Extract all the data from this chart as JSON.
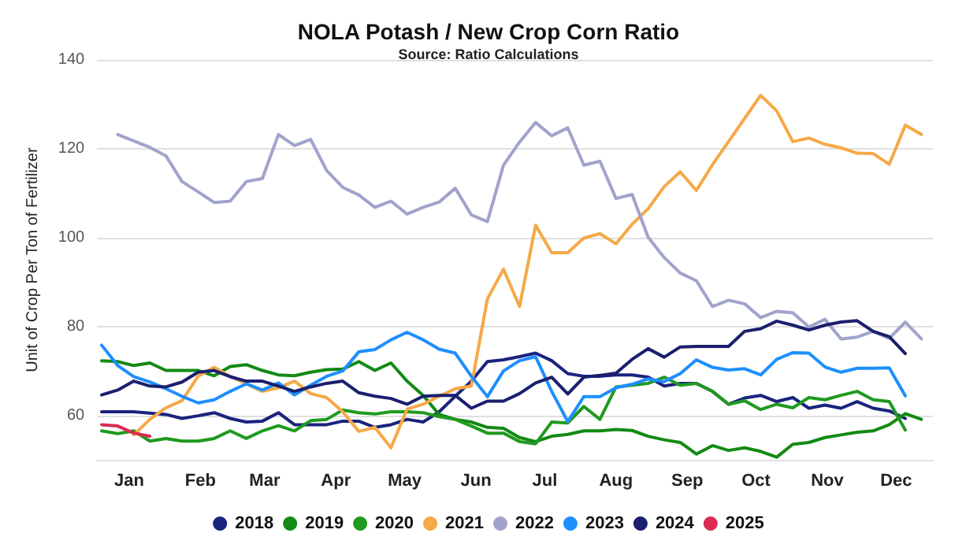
{
  "chart_data": {
    "type": "line",
    "title": "NOLA Potash / New Crop Corn Ratio",
    "subtitle": "Source: Ratio Calculations",
    "ylabel": "Unit of Crop Per Ton of Fertilizer",
    "x": [
      "--01-03",
      "--01-10",
      "--01-17",
      "--01-24",
      "--01-31",
      "--02-07",
      "--02-14",
      "--02-21",
      "--02-28",
      "--03-07",
      "--03-14",
      "--03-21",
      "--03-28",
      "--04-04",
      "--04-11",
      "--04-18",
      "--04-25",
      "--05-02",
      "--05-09",
      "--05-16",
      "--05-23",
      "--05-30",
      "--06-06",
      "--06-13",
      "--06-20",
      "--06-27",
      "--07-04",
      "--07-11",
      "--07-18",
      "--07-25",
      "--08-01",
      "--08-08",
      "--08-15",
      "--08-22",
      "--08-29",
      "--09-05",
      "--09-12",
      "--09-19",
      "--09-26",
      "--10-03",
      "--10-10",
      "--10-17",
      "--10-24",
      "--10-31",
      "--11-07",
      "--11-14",
      "--11-21",
      "--11-28",
      "--12-05",
      "--12-12",
      "--12-19",
      "--12-26"
    ],
    "xlim": [
      "--01-01",
      "--12-31"
    ],
    "xticks": [
      {
        "value": "--01-15",
        "label": "Jan"
      },
      {
        "value": "--02-15",
        "label": "Feb"
      },
      {
        "value": "--03-15",
        "label": "Mar"
      },
      {
        "value": "--04-15",
        "label": "Apr"
      },
      {
        "value": "--05-15",
        "label": "May"
      },
      {
        "value": "--06-15",
        "label": "Jun"
      },
      {
        "value": "--07-15",
        "label": "Jul"
      },
      {
        "value": "--08-15",
        "label": "Aug"
      },
      {
        "value": "--09-15",
        "label": "Sep"
      },
      {
        "value": "--10-15",
        "label": "Oct"
      },
      {
        "value": "--11-15",
        "label": "Nov"
      },
      {
        "value": "--12-15",
        "label": "Dec"
      }
    ],
    "ylim": [
      50,
      140
    ],
    "yticks": [
      60,
      80,
      100,
      120,
      140
    ],
    "grid": "y",
    "legend": "bottom",
    "marker": "none",
    "line_style": "solid",
    "series": [
      {
        "name": "2018",
        "color": "#1a237e",
        "x": [
          "--01-03",
          "--01-17",
          "--01-31",
          "--02-07",
          "--02-14",
          "--02-21",
          "--02-28",
          "--03-07",
          "--03-14",
          "--03-21",
          "--03-28",
          "--04-04",
          "--04-11",
          "--04-18",
          "--04-25",
          "--05-02",
          "--05-09",
          "--05-16",
          "--05-23",
          "--05-30",
          "--06-06",
          "--06-13",
          "--06-20",
          "--06-27",
          "--07-04",
          "--07-11",
          "--07-18",
          "--07-25",
          "--08-01",
          "--08-08",
          "--08-15",
          "--08-22",
          "--08-29",
          "--09-05",
          "--09-12",
          "--09-19",
          "--09-26",
          "--10-03",
          "--10-10",
          "--10-17",
          "--10-24",
          "--10-31",
          "--11-07",
          "--11-14",
          "--11-21",
          "--11-28",
          "--12-05",
          "--12-12",
          "--12-19"
        ],
        "values": [
          60.8,
          60.8,
          60.2,
          59.3,
          59.9,
          60.6,
          59.3,
          58.5,
          58.7,
          60.6,
          57.9,
          57.9,
          57.9,
          58.7,
          58.7,
          57.3,
          57.9,
          59.1,
          58.5,
          60.8,
          64.3,
          67.7,
          72.1,
          72.5,
          73.2,
          74,
          72.3,
          69.4,
          68.8,
          68.8,
          69.1,
          69.1,
          68.6,
          66.6,
          67.2,
          67.2,
          65.4,
          62.5,
          63.9,
          64.5,
          63.1,
          64,
          61.6,
          62.3,
          61.6,
          63.1,
          61.6,
          61,
          59.3
        ]
      },
      {
        "name": "2019",
        "color": "#138a13",
        "values": [
          72.3,
          72.1,
          71.2,
          71.8,
          70.1,
          70.1,
          70.1,
          68.9,
          71,
          71.4,
          70.1,
          69.1,
          68.9,
          69.7,
          70.3,
          70.4,
          72.1,
          70.1,
          71.8,
          67.7,
          64.5,
          60.2,
          59.1,
          58.5,
          57.3,
          57.1,
          55,
          54.1,
          55.3,
          55.7,
          56.5,
          56.5,
          56.8,
          56.6,
          55.3,
          54.5,
          53.9,
          51.3,
          53.2,
          52.1,
          52.7,
          51.9,
          50.6,
          53.5,
          53.9,
          55,
          55.6,
          56.2,
          56.5,
          57.9,
          60.4,
          59.1
        ]
      },
      {
        "name": "2020",
        "color": "#1f9a1f",
        "values": [
          56.5,
          55.9,
          56.5,
          54.2,
          54.8,
          54.2,
          54.2,
          54.8,
          56.5,
          54.8,
          56.5,
          57.7,
          56.5,
          58.8,
          59.1,
          61.2,
          60.6,
          60.3,
          60.8,
          60.8,
          60.6,
          59.7,
          59.1,
          57.6,
          56,
          56,
          54.1,
          53.6,
          58.5,
          58.3,
          62,
          59.1,
          66.4,
          66.8,
          67.2,
          68.6,
          66.8,
          67.2,
          65.4,
          62.5,
          63.3,
          61.3,
          62.5,
          61.7,
          64,
          63.5,
          64.5,
          65.4,
          63.5,
          63.1,
          56.7,
          null
        ]
      },
      {
        "name": "2021",
        "color": "#f5a947",
        "x": [
          "--01-17",
          "--01-24",
          "--01-31",
          "--02-07",
          "--02-14",
          "--02-21",
          "--02-28",
          "--03-07",
          "--03-14",
          "--03-21",
          "--03-28",
          "--04-04",
          "--04-11",
          "--04-18",
          "--04-25",
          "--05-02",
          "--05-09",
          "--05-16",
          "--05-23",
          "--05-30",
          "--06-06",
          "--06-13",
          "--06-20",
          "--06-27",
          "--07-04",
          "--07-11",
          "--07-18",
          "--07-25",
          "--08-01",
          "--08-08",
          "--08-15",
          "--08-22",
          "--08-29",
          "--09-05",
          "--09-12",
          "--09-19",
          "--09-26",
          "--10-03",
          "--10-10",
          "--10-17",
          "--10-24",
          "--10-31",
          "--11-07",
          "--11-14",
          "--11-21",
          "--11-28",
          "--12-05",
          "--12-12",
          "--12-19",
          "--12-26"
        ],
        "values": [
          55.6,
          59.1,
          61.7,
          63.3,
          68.8,
          70.8,
          68.8,
          67.1,
          65.4,
          66.2,
          67.7,
          64.9,
          64,
          60.8,
          56.4,
          57.3,
          52.7,
          61.4,
          62.5,
          64.3,
          66,
          66.6,
          86.2,
          92.9,
          84.5,
          102.8,
          96.6,
          96.6,
          99.9,
          100.9,
          98.6,
          103,
          106.5,
          111.5,
          114.8,
          110.6,
          116.4,
          121.6,
          126.8,
          132,
          128.5,
          121.6,
          122.4,
          121,
          120.2,
          119,
          118.9,
          116.5,
          125.3,
          123.2
        ]
      },
      {
        "name": "2022",
        "color": "#a0a4cc",
        "x": [
          "--01-10",
          "--01-24",
          "--01-31",
          "--02-07",
          "--02-14",
          "--02-21",
          "--02-28",
          "--03-07",
          "--03-14",
          "--03-21",
          "--03-28",
          "--04-04",
          "--04-11",
          "--04-18",
          "--04-25",
          "--05-02",
          "--05-09",
          "--05-16",
          "--05-23",
          "--05-30",
          "--06-06",
          "--06-13",
          "--06-20",
          "--06-27",
          "--07-04",
          "--07-11",
          "--07-18",
          "--07-25",
          "--08-01",
          "--08-08",
          "--08-15",
          "--08-22",
          "--08-29",
          "--09-05",
          "--09-12",
          "--09-19",
          "--09-26",
          "--10-03",
          "--10-10",
          "--10-17",
          "--10-24",
          "--10-31",
          "--11-07",
          "--11-14",
          "--11-21",
          "--11-28",
          "--12-05",
          "--12-12",
          "--12-19",
          "--12-26"
        ],
        "values": [
          123.2,
          120.3,
          118.4,
          112.6,
          110.3,
          107.9,
          108.2,
          112.6,
          113.3,
          123.2,
          120.7,
          122.1,
          115.1,
          111.3,
          109.6,
          106.8,
          108.2,
          105.3,
          106.8,
          108,
          111.1,
          105.1,
          103.6,
          116.3,
          121.5,
          125.9,
          122.9,
          124.7,
          116.3,
          117.2,
          108.8,
          109.7,
          100.1,
          95.5,
          92,
          90.3,
          84.5,
          85.9,
          85.1,
          82,
          83.4,
          83.1,
          79.9,
          81.6,
          77.2,
          77.6,
          78.9,
          77.3,
          81,
          77.2
        ]
      },
      {
        "name": "2023",
        "color": "#1e8fff",
        "values": [
          75.8,
          71.2,
          68.7,
          67.5,
          66,
          64.3,
          62.8,
          63.5,
          65.4,
          67.1,
          65.7,
          67.3,
          64.6,
          66.8,
          68.8,
          70,
          74.3,
          74.8,
          77,
          78.7,
          77,
          74.9,
          74,
          68.8,
          64.2,
          70,
          72.3,
          73.2,
          65.4,
          58.6,
          64.2,
          64.2,
          66.2,
          67,
          68.2,
          67.6,
          69.4,
          72.5,
          70.8,
          70.2,
          70.5,
          69.1,
          72.6,
          74.1,
          74,
          70.9,
          69.7,
          70.6,
          70.6,
          70.7,
          64.4,
          null
        ]
      },
      {
        "name": "2024",
        "color": "#1a1f6e",
        "values": [
          64.6,
          65.7,
          67.7,
          66.6,
          66.4,
          67.5,
          69.7,
          70.1,
          68.7,
          67.7,
          67.7,
          66.6,
          65.4,
          66.4,
          67.2,
          67.7,
          65.1,
          64.3,
          63.8,
          62.5,
          64.3,
          64.5,
          64.5,
          61.6,
          63.2,
          63.2,
          64.9,
          67.3,
          68.6,
          64.8,
          68.6,
          69,
          69.5,
          72.6,
          75,
          73.1,
          75.4,
          75.5,
          75.5,
          75.5,
          78.9,
          79.5,
          81.2,
          80.3,
          79.2,
          80.3,
          81,
          81.3,
          78.9,
          77.7,
          73.9,
          null
        ]
      },
      {
        "name": "2025",
        "color": "#dc2a52",
        "values": [
          57.9,
          57.6,
          56,
          55.3,
          null,
          null,
          null,
          null,
          null,
          null,
          null,
          null,
          null,
          null,
          null,
          null,
          null,
          null,
          null,
          null,
          null,
          null,
          null,
          null,
          null,
          null,
          null,
          null,
          null,
          null,
          null,
          null,
          null,
          null,
          null,
          null,
          null,
          null,
          null,
          null,
          null,
          null,
          null,
          null,
          null,
          null,
          null,
          null,
          null,
          null,
          null,
          null
        ]
      }
    ]
  }
}
